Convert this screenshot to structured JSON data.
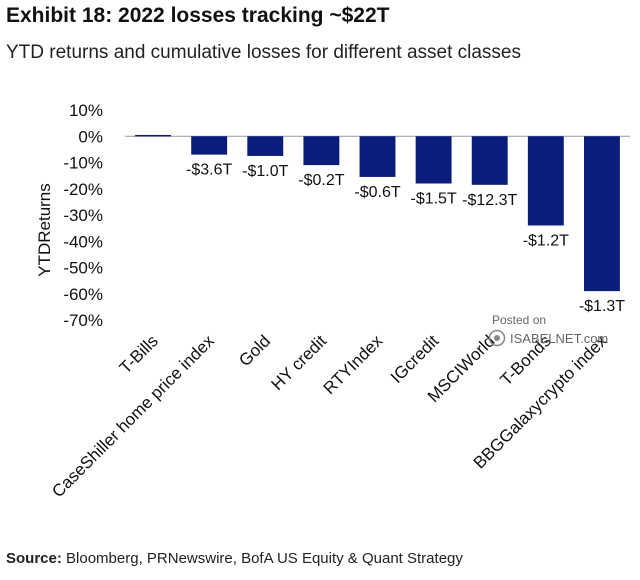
{
  "title": "Exhibit 18: 2022 losses tracking ~$22T",
  "subtitle": "YTD returns and cumulative losses for different asset classes",
  "source": {
    "label": "Source:",
    "text": "Bloomberg, PRNewswire, BofA US Equity & Quant Strategy"
  },
  "watermark": {
    "line1": "Posted on",
    "line2": "ISABELNET.com"
  },
  "colors": {
    "bar": "#0b1d7a",
    "axis": "#999999"
  },
  "chart_data": {
    "type": "bar",
    "ylabel": "YTDReturns",
    "ylim": [
      -70,
      10
    ],
    "yticks": [
      10,
      0,
      -10,
      -20,
      -30,
      -40,
      -50,
      -60,
      -70
    ],
    "ytick_labels": [
      "10%",
      "0%",
      "-10%",
      "-20%",
      "-30%",
      "-40%",
      "-50%",
      "-60%",
      "-70%"
    ],
    "categories": [
      "T-Bills",
      "CaseShiller home price index",
      "Gold",
      "HY credit",
      "RTYIndex",
      "IGcredit",
      "MSCIWorld",
      "T-Bonds",
      "BBGGalaxycrypto index"
    ],
    "values": [
      0.5,
      -7,
      -7.5,
      -11,
      -15.5,
      -18,
      -18.5,
      -34,
      -59
    ],
    "data_labels": [
      "",
      "-$3.6T",
      "-$1.0T",
      "-$0.2T",
      "-$0.6T",
      "-$1.5T",
      "-$12.3T",
      "-$1.2T",
      "-$1.3T"
    ],
    "grid": false,
    "legend": "none"
  }
}
